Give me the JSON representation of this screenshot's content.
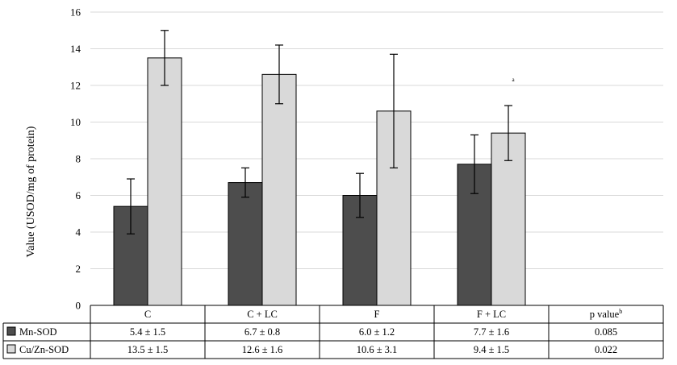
{
  "chart_data": {
    "type": "bar",
    "ylabel": "Value (USOD/mg of protein)",
    "ylim": [
      0,
      16
    ],
    "yticks": [
      0,
      2,
      4,
      6,
      8,
      10,
      12,
      14,
      16
    ],
    "grid": true,
    "categories": [
      "C",
      "C + LC",
      "F",
      "F + LC"
    ],
    "series": [
      {
        "name": "Mn-SOD",
        "color": "#4d4d4d",
        "values": [
          5.4,
          6.7,
          6.0,
          7.7
        ],
        "errors": [
          1.5,
          0.8,
          1.2,
          1.6
        ]
      },
      {
        "name": "Cu/Zn-SOD",
        "color": "#d9d9d9",
        "values": [
          13.5,
          12.6,
          10.6,
          9.4
        ],
        "errors": [
          1.5,
          1.6,
          3.1,
          1.5
        ]
      }
    ],
    "annotations": [
      {
        "series": 1,
        "category": 3,
        "text": "a"
      }
    ],
    "table": {
      "extra_header": "p value",
      "extra_header_sup": "b",
      "rows": [
        {
          "label": "Mn-SOD",
          "cells": [
            "5.4 ± 1.5",
            "6.7 ± 0.8",
            "6.0 ± 1.2",
            "7.7 ± 1.6"
          ],
          "p": "0.085"
        },
        {
          "label": "Cu/Zn-SOD",
          "cells": [
            "13.5 ± 1.5",
            "12.6 ± 1.6",
            "10.6 ± 3.1",
            "9.4 ± 1.5"
          ],
          "p": "0.022"
        }
      ]
    }
  }
}
